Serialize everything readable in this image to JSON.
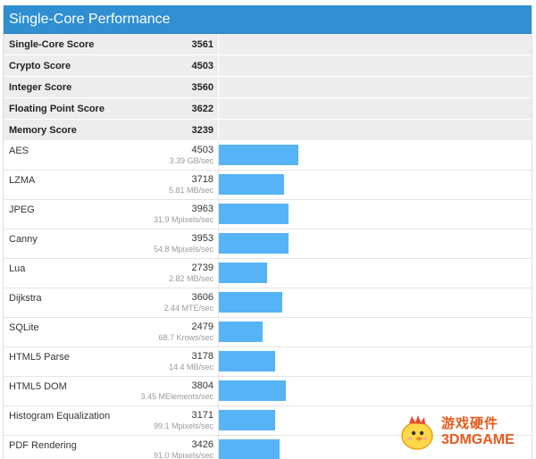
{
  "header": {
    "title": "Single-Core Performance"
  },
  "summary": [
    {
      "label": "Single-Core Score",
      "score": "3561"
    },
    {
      "label": "Crypto Score",
      "score": "4503"
    },
    {
      "label": "Integer Score",
      "score": "3560"
    },
    {
      "label": "Floating Point Score",
      "score": "3622"
    },
    {
      "label": "Memory Score",
      "score": "3239"
    }
  ],
  "benchmarks": [
    {
      "name": "AES",
      "score": "4503",
      "rate": "3.39 GB/sec",
      "bar_value": 4503
    },
    {
      "name": "LZMA",
      "score": "3718",
      "rate": "5.81 MB/sec",
      "bar_value": 3718
    },
    {
      "name": "JPEG",
      "score": "3963",
      "rate": "31.9 Mpixels/sec",
      "bar_value": 3963
    },
    {
      "name": "Canny",
      "score": "3953",
      "rate": "54.8 Mpixels/sec",
      "bar_value": 3953
    },
    {
      "name": "Lua",
      "score": "2739",
      "rate": "2.82 MB/sec",
      "bar_value": 2739
    },
    {
      "name": "Dijkstra",
      "score": "3606",
      "rate": "2.44 MTE/sec",
      "bar_value": 3606
    },
    {
      "name": "SQLite",
      "score": "2479",
      "rate": "68.7 Krows/sec",
      "bar_value": 2479
    },
    {
      "name": "HTML5 Parse",
      "score": "3178",
      "rate": "14.4 MB/sec",
      "bar_value": 3178
    },
    {
      "name": "HTML5 DOM",
      "score": "3804",
      "rate": "3.45 MElements/sec",
      "bar_value": 3804
    },
    {
      "name": "Histogram Equalization",
      "score": "3171",
      "rate": "99.1 Mpixels/sec",
      "bar_value": 3171
    },
    {
      "name": "PDF Rendering",
      "score": "3426",
      "rate": "91.0 Mpixels/sec",
      "bar_value": 3426
    }
  ],
  "watermark": {
    "cn": "游戏硬件",
    "en": "3DMGAME"
  },
  "colors": {
    "header": "#2f8fd1",
    "bar": "#56b4f6",
    "summary_bg": "#ededed",
    "watermark": "#e85a1c"
  }
}
